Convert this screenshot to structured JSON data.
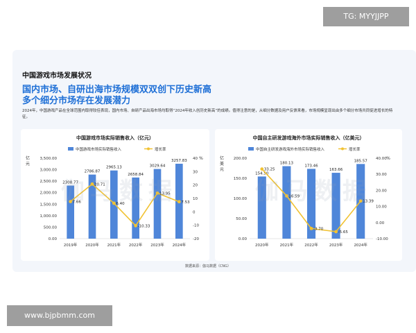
{
  "badges": {
    "tg": "TG: MYYJJPP",
    "url": "www.bjpbmm.com"
  },
  "section_title": "中国游戏市场发展状况",
  "headline_lines": [
    "国内市场、自研出海市场规模双双创下历史新高",
    "多个细分市场存在发展潜力"
  ],
  "description": "2024年，中国游戏产品在全球范围内取得较佳表现，国内市场、自研产品出海市场均取得“2024年收入创历史新高”的成绩。值得注意的是，从细分数据及用户反馈来看，市场规模呈现出由多个细分市场共同促进增长的特征。",
  "watermark": "伽马数据",
  "source": "数据来源：伽马数据（CNG）",
  "colors": {
    "bar": "#4f86d9",
    "line": "#f1c232",
    "headline": "#1e6fd6"
  },
  "chart_data": [
    {
      "type": "bar",
      "title": "中国游戏市场实际销售收入（亿元）",
      "categories": [
        "2019年",
        "2020年",
        "2021年",
        "2022年",
        "2023年",
        "2024年"
      ],
      "series": [
        {
          "name": "中国游戏市场实际销售收入",
          "type": "bar",
          "axis": "left",
          "values": [
            2308.77,
            2786.87,
            2965.13,
            2658.84,
            3029.64,
            3257.83
          ],
          "labels": [
            "2308.77",
            "2786.87",
            "2965.13",
            "2658.84",
            "3029.64",
            "3257.83"
          ]
        },
        {
          "name": "增长率",
          "type": "line",
          "axis": "right",
          "values": [
            7.66,
            20.71,
            6.4,
            -10.33,
            13.95,
            7.53
          ],
          "labels": [
            "7.66",
            "20.71",
            "6.40",
            "-10.33",
            "13.95",
            "7.53"
          ]
        }
      ],
      "ylabel_left": "亿元",
      "ylabel_right": "%",
      "ylim_left": [
        0,
        3500
      ],
      "ylim_right": [
        -20,
        40
      ],
      "yticks_left": [
        "0.00",
        "500.00",
        "1,000.00",
        "1,500.00",
        "2,000.00",
        "2,500.00",
        "3,000.00",
        "3,500.00"
      ],
      "yticks_right": [
        "-20",
        "-10",
        "0",
        "10",
        "20",
        "30",
        "40"
      ],
      "legend_position": "top"
    },
    {
      "type": "bar",
      "title": "中国自主研发游戏海外市场实际销售收入（亿美元）",
      "categories": [
        "2020年",
        "2021年",
        "2022年",
        "2023年",
        "2024年"
      ],
      "series": [
        {
          "name": "中国自主研发游戏海外市场实际销售收入",
          "type": "bar",
          "axis": "left",
          "values": [
            154.5,
            180.13,
            173.46,
            163.66,
            185.57
          ],
          "labels": [
            "154.50",
            "180.13",
            "173.46",
            "163.66",
            "185.57"
          ]
        },
        {
          "name": "增长率",
          "type": "line",
          "axis": "right",
          "values": [
            33.25,
            16.59,
            -3.7,
            -5.65,
            13.39
          ],
          "labels": [
            "33.25",
            "16.59",
            "-3.70",
            "-5.65",
            "13.39"
          ]
        }
      ],
      "ylabel_left": "亿美元",
      "ylabel_right": "%",
      "ylim_left": [
        0,
        200
      ],
      "ylim_right": [
        -10,
        40
      ],
      "yticks_left": [
        "0.00",
        "50.00",
        "100.00",
        "150.00",
        "200.00"
      ],
      "yticks_right": [
        "-10.00",
        "0.00",
        "10.00",
        "20.00",
        "30.00",
        "40.00"
      ],
      "legend_position": "top"
    }
  ]
}
